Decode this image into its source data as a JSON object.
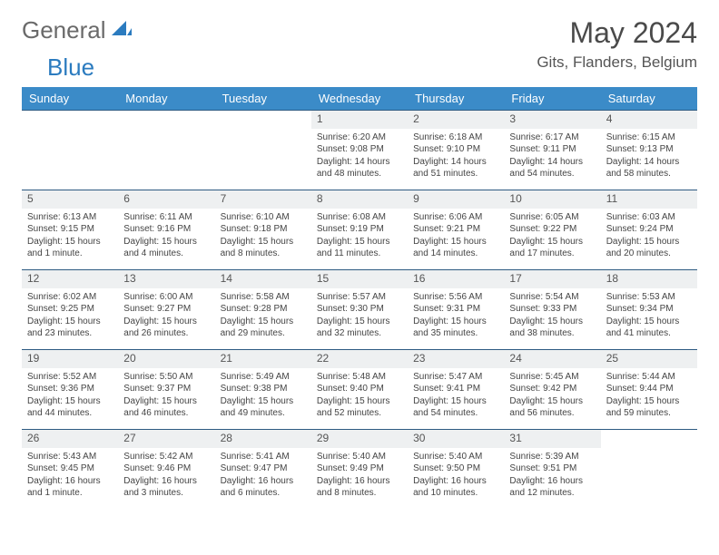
{
  "brand": {
    "text1": "General",
    "text2": "Blue"
  },
  "title": "May 2024",
  "location": "Gits, Flanders, Belgium",
  "colors": {
    "header_bg": "#3b8bc8",
    "header_text": "#ffffff",
    "daynum_bg": "#eef0f1",
    "border": "#2d5a82",
    "brand_gray": "#6a6a6a",
    "brand_blue": "#2b7bbf"
  },
  "weekdays": [
    "Sunday",
    "Monday",
    "Tuesday",
    "Wednesday",
    "Thursday",
    "Friday",
    "Saturday"
  ],
  "weeks": [
    [
      {
        "n": "",
        "sr": "",
        "ss": "",
        "dl": ""
      },
      {
        "n": "",
        "sr": "",
        "ss": "",
        "dl": ""
      },
      {
        "n": "",
        "sr": "",
        "ss": "",
        "dl": ""
      },
      {
        "n": "1",
        "sr": "Sunrise: 6:20 AM",
        "ss": "Sunset: 9:08 PM",
        "dl": "Daylight: 14 hours and 48 minutes."
      },
      {
        "n": "2",
        "sr": "Sunrise: 6:18 AM",
        "ss": "Sunset: 9:10 PM",
        "dl": "Daylight: 14 hours and 51 minutes."
      },
      {
        "n": "3",
        "sr": "Sunrise: 6:17 AM",
        "ss": "Sunset: 9:11 PM",
        "dl": "Daylight: 14 hours and 54 minutes."
      },
      {
        "n": "4",
        "sr": "Sunrise: 6:15 AM",
        "ss": "Sunset: 9:13 PM",
        "dl": "Daylight: 14 hours and 58 minutes."
      }
    ],
    [
      {
        "n": "5",
        "sr": "Sunrise: 6:13 AM",
        "ss": "Sunset: 9:15 PM",
        "dl": "Daylight: 15 hours and 1 minute."
      },
      {
        "n": "6",
        "sr": "Sunrise: 6:11 AM",
        "ss": "Sunset: 9:16 PM",
        "dl": "Daylight: 15 hours and 4 minutes."
      },
      {
        "n": "7",
        "sr": "Sunrise: 6:10 AM",
        "ss": "Sunset: 9:18 PM",
        "dl": "Daylight: 15 hours and 8 minutes."
      },
      {
        "n": "8",
        "sr": "Sunrise: 6:08 AM",
        "ss": "Sunset: 9:19 PM",
        "dl": "Daylight: 15 hours and 11 minutes."
      },
      {
        "n": "9",
        "sr": "Sunrise: 6:06 AM",
        "ss": "Sunset: 9:21 PM",
        "dl": "Daylight: 15 hours and 14 minutes."
      },
      {
        "n": "10",
        "sr": "Sunrise: 6:05 AM",
        "ss": "Sunset: 9:22 PM",
        "dl": "Daylight: 15 hours and 17 minutes."
      },
      {
        "n": "11",
        "sr": "Sunrise: 6:03 AM",
        "ss": "Sunset: 9:24 PM",
        "dl": "Daylight: 15 hours and 20 minutes."
      }
    ],
    [
      {
        "n": "12",
        "sr": "Sunrise: 6:02 AM",
        "ss": "Sunset: 9:25 PM",
        "dl": "Daylight: 15 hours and 23 minutes."
      },
      {
        "n": "13",
        "sr": "Sunrise: 6:00 AM",
        "ss": "Sunset: 9:27 PM",
        "dl": "Daylight: 15 hours and 26 minutes."
      },
      {
        "n": "14",
        "sr": "Sunrise: 5:58 AM",
        "ss": "Sunset: 9:28 PM",
        "dl": "Daylight: 15 hours and 29 minutes."
      },
      {
        "n": "15",
        "sr": "Sunrise: 5:57 AM",
        "ss": "Sunset: 9:30 PM",
        "dl": "Daylight: 15 hours and 32 minutes."
      },
      {
        "n": "16",
        "sr": "Sunrise: 5:56 AM",
        "ss": "Sunset: 9:31 PM",
        "dl": "Daylight: 15 hours and 35 minutes."
      },
      {
        "n": "17",
        "sr": "Sunrise: 5:54 AM",
        "ss": "Sunset: 9:33 PM",
        "dl": "Daylight: 15 hours and 38 minutes."
      },
      {
        "n": "18",
        "sr": "Sunrise: 5:53 AM",
        "ss": "Sunset: 9:34 PM",
        "dl": "Daylight: 15 hours and 41 minutes."
      }
    ],
    [
      {
        "n": "19",
        "sr": "Sunrise: 5:52 AM",
        "ss": "Sunset: 9:36 PM",
        "dl": "Daylight: 15 hours and 44 minutes."
      },
      {
        "n": "20",
        "sr": "Sunrise: 5:50 AM",
        "ss": "Sunset: 9:37 PM",
        "dl": "Daylight: 15 hours and 46 minutes."
      },
      {
        "n": "21",
        "sr": "Sunrise: 5:49 AM",
        "ss": "Sunset: 9:38 PM",
        "dl": "Daylight: 15 hours and 49 minutes."
      },
      {
        "n": "22",
        "sr": "Sunrise: 5:48 AM",
        "ss": "Sunset: 9:40 PM",
        "dl": "Daylight: 15 hours and 52 minutes."
      },
      {
        "n": "23",
        "sr": "Sunrise: 5:47 AM",
        "ss": "Sunset: 9:41 PM",
        "dl": "Daylight: 15 hours and 54 minutes."
      },
      {
        "n": "24",
        "sr": "Sunrise: 5:45 AM",
        "ss": "Sunset: 9:42 PM",
        "dl": "Daylight: 15 hours and 56 minutes."
      },
      {
        "n": "25",
        "sr": "Sunrise: 5:44 AM",
        "ss": "Sunset: 9:44 PM",
        "dl": "Daylight: 15 hours and 59 minutes."
      }
    ],
    [
      {
        "n": "26",
        "sr": "Sunrise: 5:43 AM",
        "ss": "Sunset: 9:45 PM",
        "dl": "Daylight: 16 hours and 1 minute."
      },
      {
        "n": "27",
        "sr": "Sunrise: 5:42 AM",
        "ss": "Sunset: 9:46 PM",
        "dl": "Daylight: 16 hours and 3 minutes."
      },
      {
        "n": "28",
        "sr": "Sunrise: 5:41 AM",
        "ss": "Sunset: 9:47 PM",
        "dl": "Daylight: 16 hours and 6 minutes."
      },
      {
        "n": "29",
        "sr": "Sunrise: 5:40 AM",
        "ss": "Sunset: 9:49 PM",
        "dl": "Daylight: 16 hours and 8 minutes."
      },
      {
        "n": "30",
        "sr": "Sunrise: 5:40 AM",
        "ss": "Sunset: 9:50 PM",
        "dl": "Daylight: 16 hours and 10 minutes."
      },
      {
        "n": "31",
        "sr": "Sunrise: 5:39 AM",
        "ss": "Sunset: 9:51 PM",
        "dl": "Daylight: 16 hours and 12 minutes."
      },
      {
        "n": "",
        "sr": "",
        "ss": "",
        "dl": ""
      }
    ]
  ]
}
